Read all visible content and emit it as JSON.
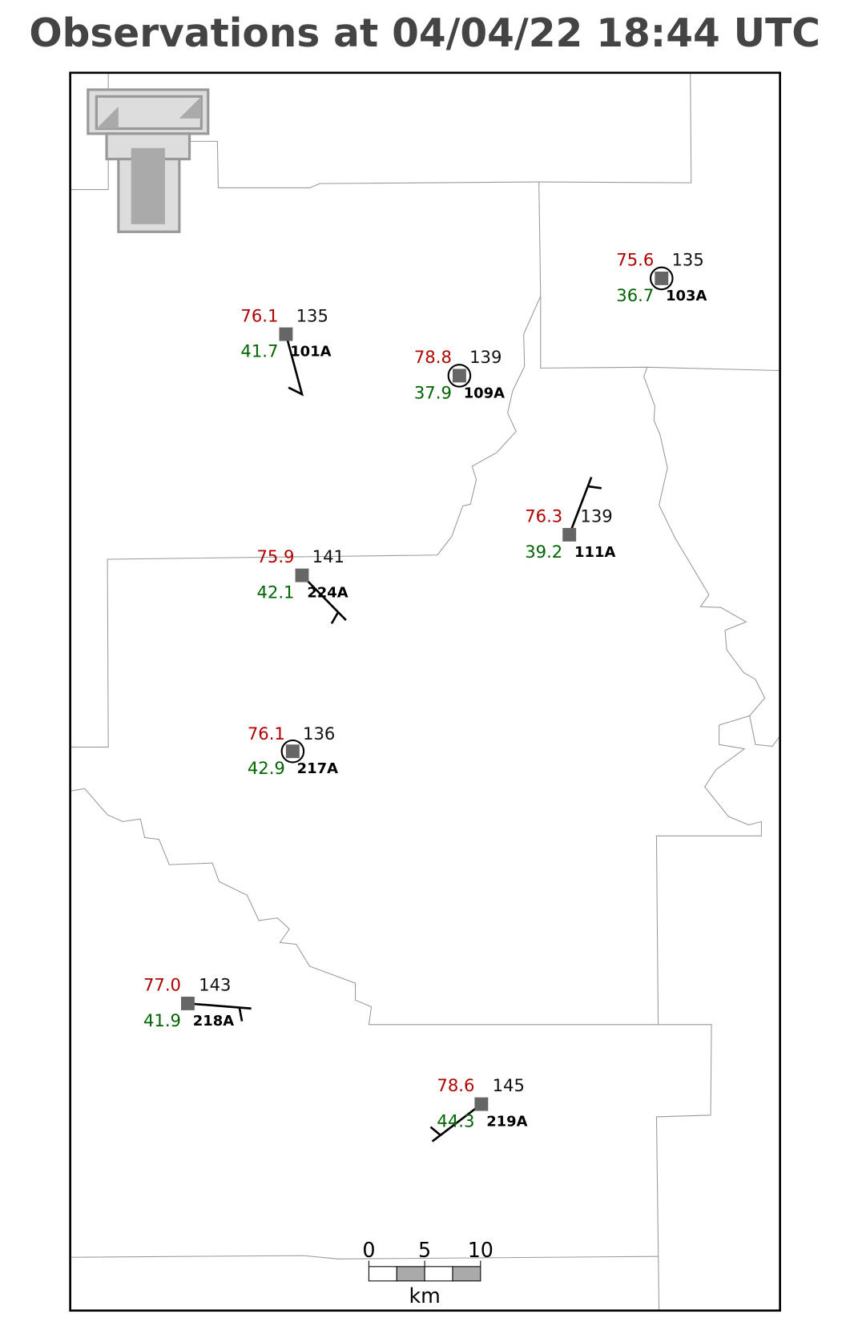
{
  "title": "Observations at 04/04/22 18:44 UTC",
  "stations": [
    {
      "id": "101A",
      "temperature": "76.1",
      "dewpoint": "41.7",
      "value": "135"
    },
    {
      "id": "103A",
      "temperature": "75.6",
      "dewpoint": "36.7",
      "value": "135"
    },
    {
      "id": "109A",
      "temperature": "78.8",
      "dewpoint": "37.9",
      "value": "139"
    },
    {
      "id": "111A",
      "temperature": "76.3",
      "dewpoint": "39.2",
      "value": "139"
    },
    {
      "id": "224A",
      "temperature": "75.9",
      "dewpoint": "42.1",
      "value": "141"
    },
    {
      "id": "217A",
      "temperature": "76.1",
      "dewpoint": "42.9",
      "value": "136"
    },
    {
      "id": "218A",
      "temperature": "77.0",
      "dewpoint": "41.9",
      "value": "143"
    },
    {
      "id": "219A",
      "temperature": "78.6",
      "dewpoint": "44.3",
      "value": "145"
    }
  ],
  "scale_bar": {
    "labels": [
      "0",
      "5",
      "10"
    ],
    "unit": "km"
  }
}
